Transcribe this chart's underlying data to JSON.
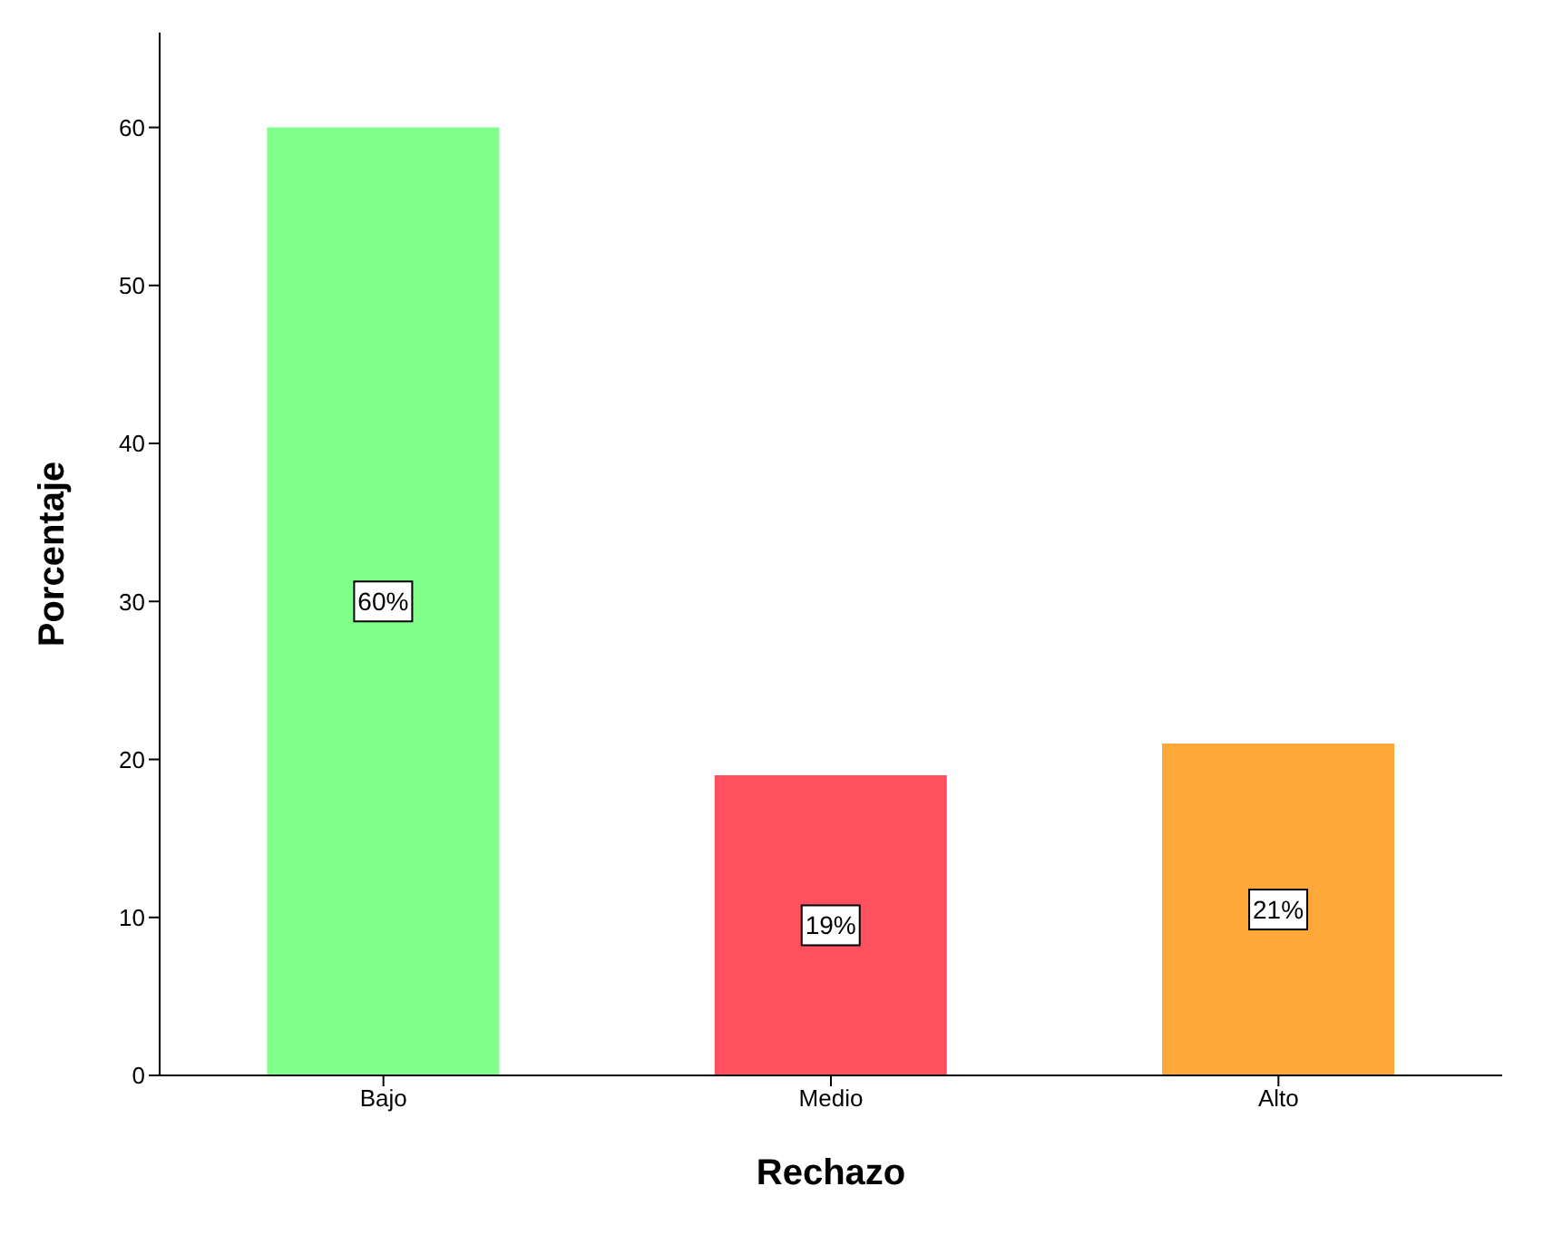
{
  "chart_data": {
    "type": "bar",
    "xlabel": "Rechazo",
    "ylabel": "Porcentaje",
    "categories": [
      "Bajo",
      "Medio",
      "Alto"
    ],
    "values": [
      60,
      19,
      21
    ],
    "colors": [
      "#80ff8a",
      "#ff5060",
      "#ffa83a"
    ],
    "value_labels": [
      "60%",
      "19%",
      "21%"
    ],
    "ylim": [
      0,
      66
    ],
    "yticks": [
      0,
      10,
      20,
      30,
      40,
      50,
      60
    ],
    "grid": false
  }
}
